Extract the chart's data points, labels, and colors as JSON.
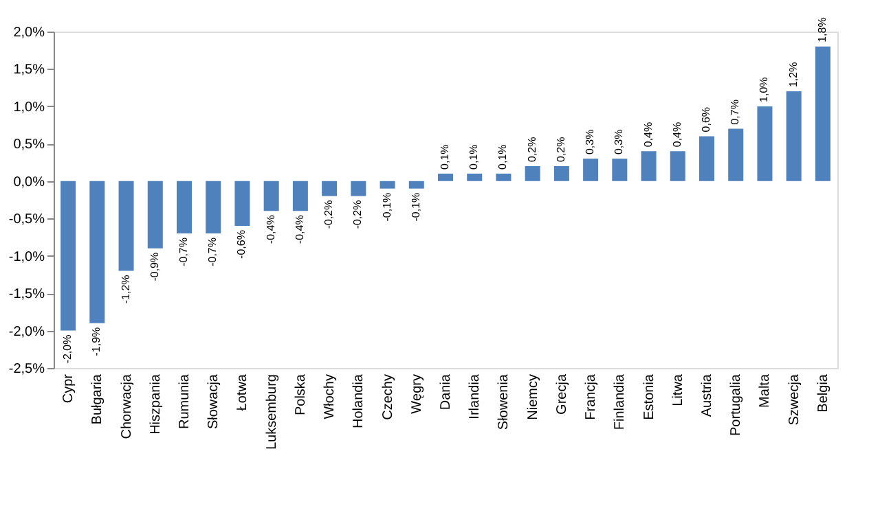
{
  "chart_data": {
    "type": "bar",
    "categories": [
      "Cypr",
      "Bułgaria",
      "Chorwacja",
      "Hiszpania",
      "Rumunia",
      "Słowacja",
      "Łotwa",
      "Luksemburg",
      "Polska",
      "Włochy",
      "Holandia",
      "Czechy",
      "Węgry",
      "Dania",
      "Irlandia",
      "Słowenia",
      "Niemcy",
      "Grecja",
      "Francja",
      "Finlandia",
      "Estonia",
      "Litwa",
      "Austria",
      "Portugalia",
      "Malta",
      "Szwecja",
      "Belgia"
    ],
    "values": [
      -2.0,
      -1.9,
      -1.2,
      -0.9,
      -0.7,
      -0.7,
      -0.6,
      -0.4,
      -0.4,
      -0.2,
      -0.2,
      -0.1,
      -0.1,
      0.1,
      0.1,
      0.1,
      0.2,
      0.2,
      0.3,
      0.3,
      0.4,
      0.4,
      0.6,
      0.7,
      1.0,
      1.2,
      1.8
    ],
    "value_labels": [
      "-2,0%",
      "-1,9%",
      "-1,2%",
      "-0,9%",
      "-0,7%",
      "-0,7%",
      "-0,6%",
      "-0,4%",
      "-0,4%",
      "-0,2%",
      "-0,2%",
      "-0,1%",
      "-0,1%",
      "0,1%",
      "0,1%",
      "0,1%",
      "0,2%",
      "0,2%",
      "0,3%",
      "0,3%",
      "0,4%",
      "0,4%",
      "0,6%",
      "0,7%",
      "1,0%",
      "1,2%",
      "1,8%"
    ],
    "color": "#4f81bd",
    "ylim": [
      -2.5,
      2.0
    ],
    "yticks": [
      {
        "value": -2.5,
        "label": "-2,5%"
      },
      {
        "value": -2.0,
        "label": "-2,0%"
      },
      {
        "value": -1.5,
        "label": "-1,5%"
      },
      {
        "value": -1.0,
        "label": "-1,0%"
      },
      {
        "value": -0.5,
        "label": "-0,5%"
      },
      {
        "value": 0.0,
        "label": "0,0%"
      },
      {
        "value": 0.5,
        "label": "0,5%"
      },
      {
        "value": 1.0,
        "label": "1,0%"
      },
      {
        "value": 1.5,
        "label": "1,5%"
      },
      {
        "value": 2.0,
        "label": "2,0%"
      }
    ],
    "grid": false
  }
}
